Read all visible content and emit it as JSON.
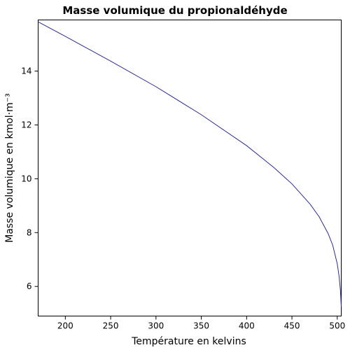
{
  "chart_data": {
    "type": "line",
    "title": "Masse volumique du propionaldéhyde",
    "xlabel": "Température en kelvins",
    "ylabel": "Masse volumique en kmol·m⁻³",
    "xlim": [
      170,
      504.4
    ],
    "ylim": [
      4.9,
      15.9
    ],
    "xticks": [
      200,
      250,
      300,
      350,
      400,
      450,
      500
    ],
    "yticks": [
      6,
      8,
      10,
      12,
      14
    ],
    "grid": false,
    "series": [
      {
        "color": "#2b2b8c",
        "x": [
          170,
          200,
          250,
          300,
          350,
          400,
          430,
          450,
          470,
          480,
          490,
          495,
          500,
          502,
          503.5,
          504.4
        ],
        "y": [
          15.83,
          15.29,
          14.37,
          13.42,
          12.38,
          11.23,
          10.42,
          9.81,
          9.06,
          8.59,
          7.96,
          7.53,
          6.84,
          6.38,
          5.85,
          5.26
        ]
      }
    ]
  }
}
